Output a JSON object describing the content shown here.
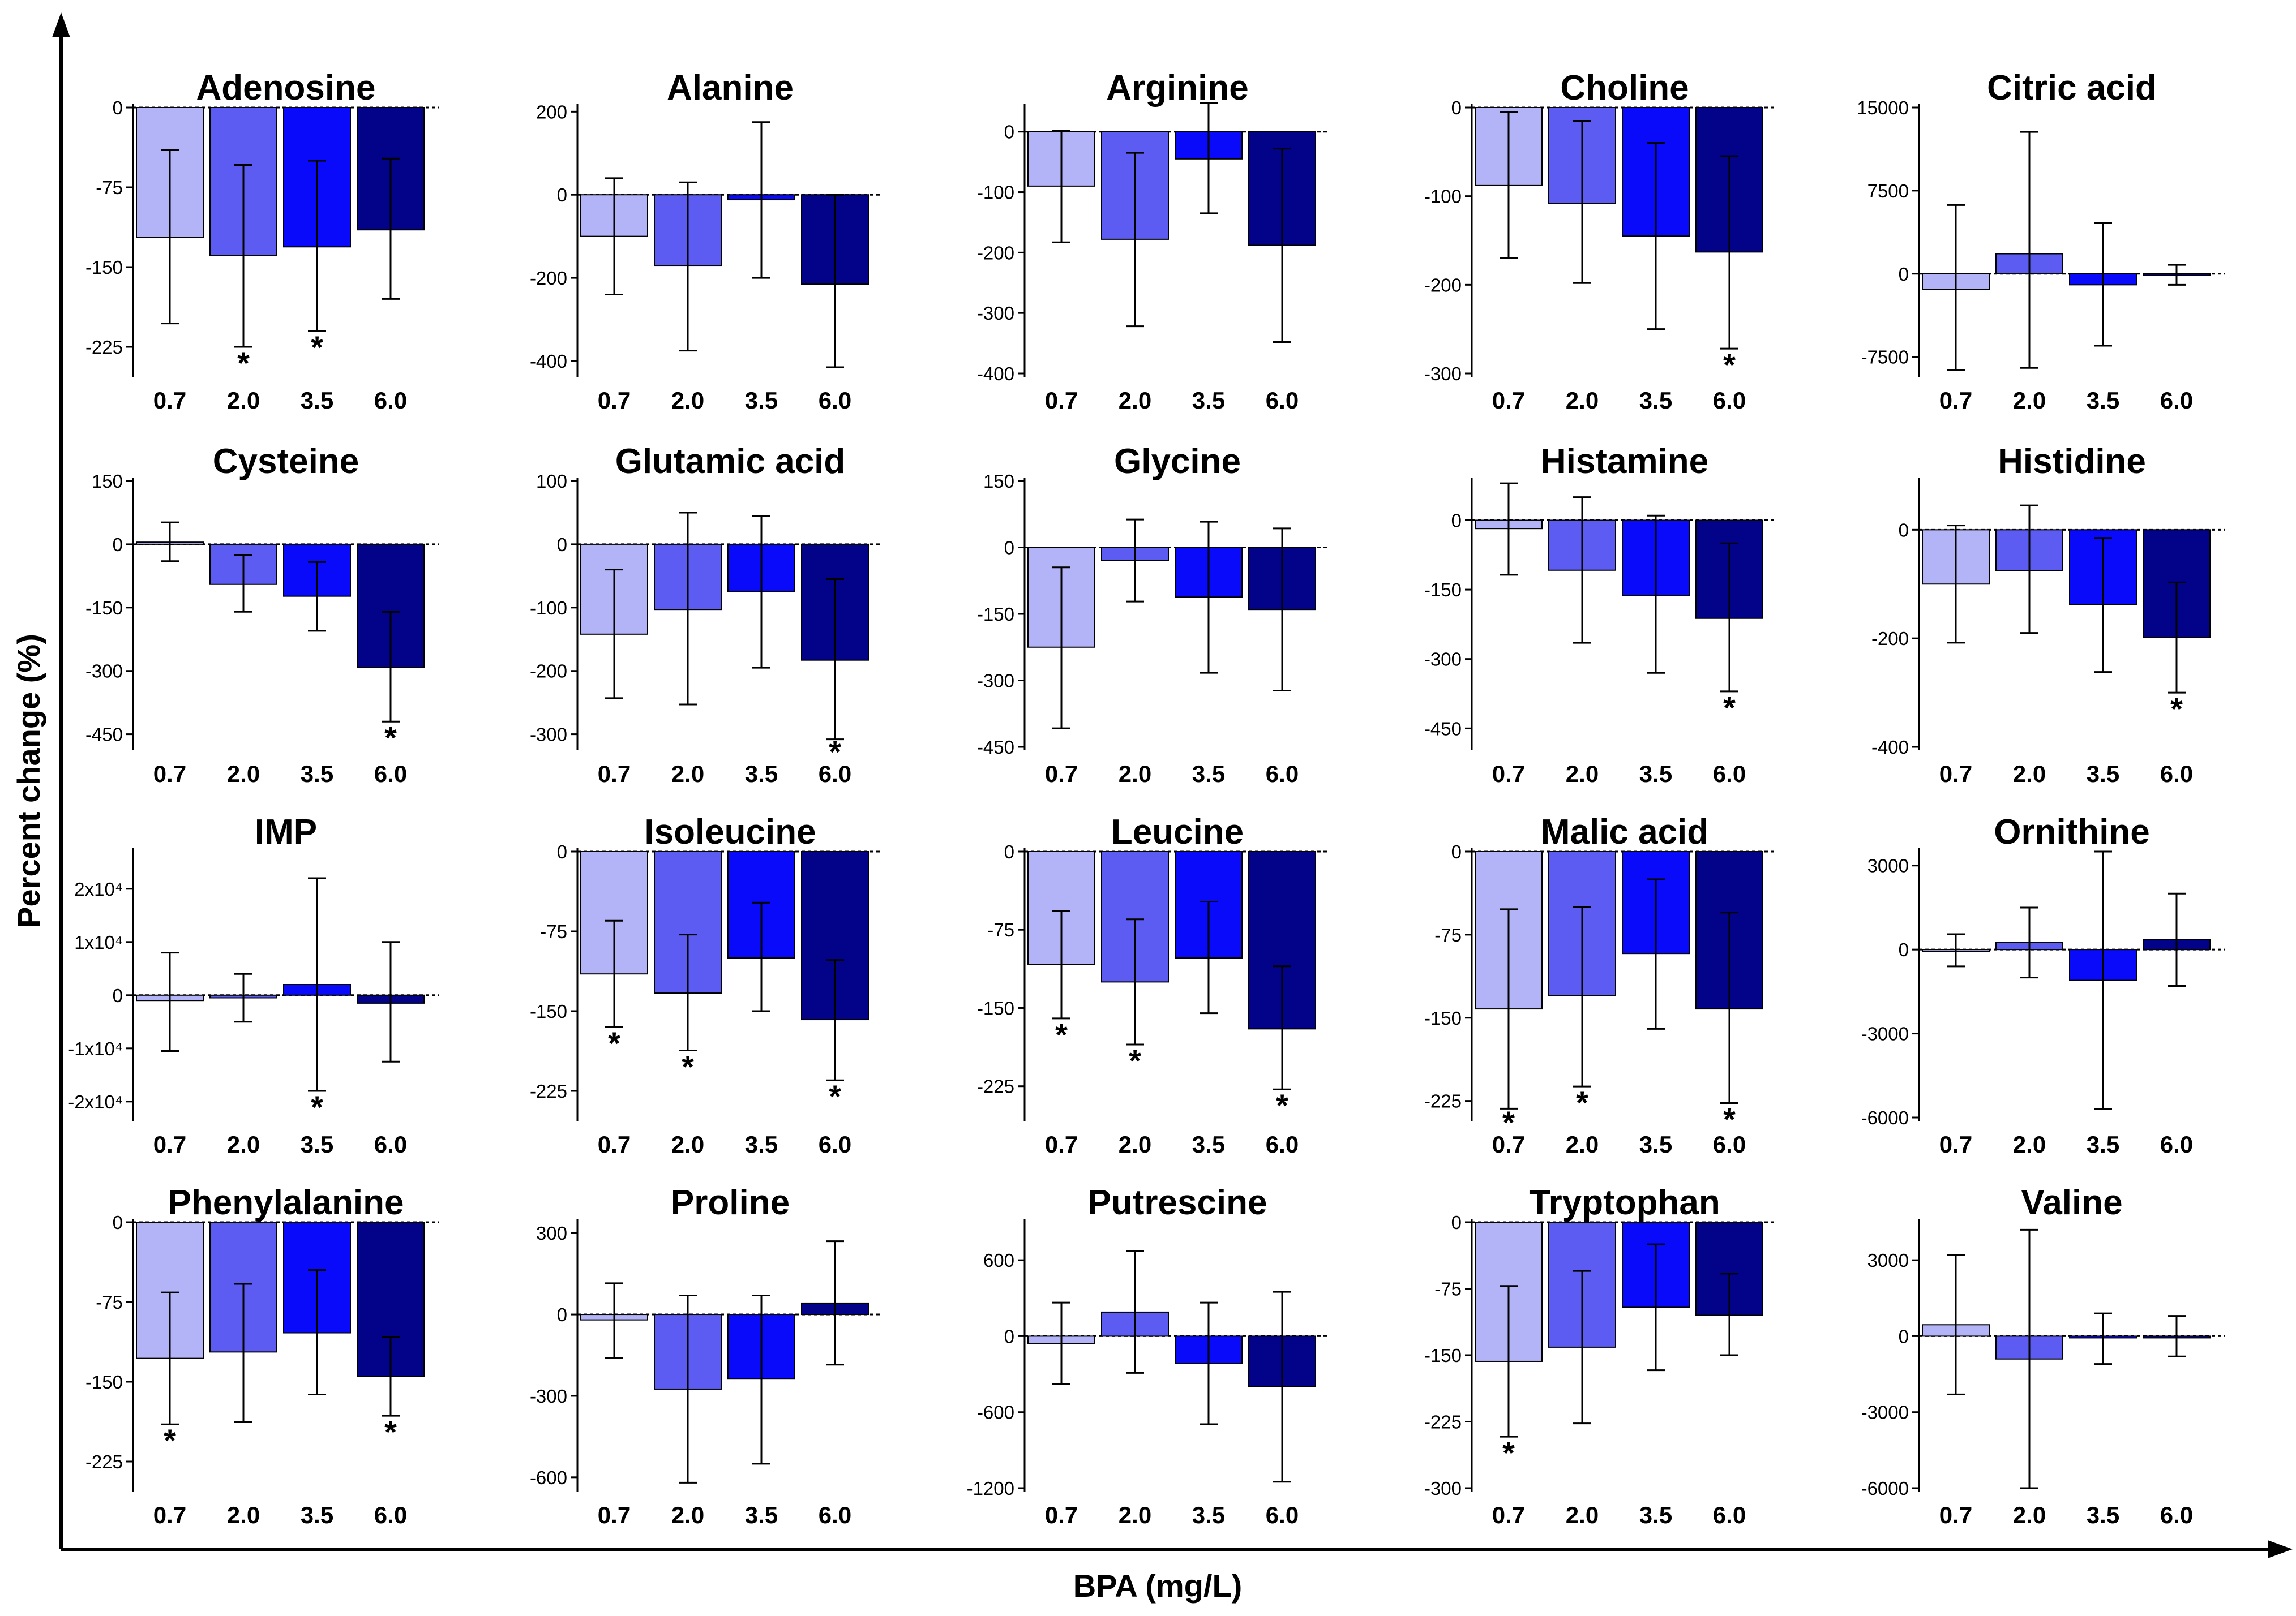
{
  "colors": {
    "0.7": "#b3b3f7",
    "2.0": "#5c5cf2",
    "3.5": "#0a0afa",
    "6.0": "#03038a"
  },
  "labels": {
    "xlabel": "BPA (mg/L)",
    "ylabel": "Percent change (%)"
  },
  "chart_data": [
    {
      "type": "bar",
      "title": "Adenosine",
      "categories": [
        "0.7",
        "2.0",
        "3.5",
        "6.0"
      ],
      "values": [
        -122,
        -139,
        -131,
        -115
      ],
      "err_low": [
        -203,
        -225,
        -210,
        -180
      ],
      "err_high": [
        -40,
        -54,
        -50,
        -48
      ],
      "sig": [
        false,
        true,
        true,
        false
      ],
      "ylim": [
        -250,
        0
      ],
      "ticks": [
        0,
        -75,
        -150,
        -225
      ],
      "tick_labels": [
        "0",
        "-75",
        "-150",
        "-225"
      ]
    },
    {
      "type": "bar",
      "title": "Alanine",
      "categories": [
        "0.7",
        "2.0",
        "3.5",
        "6.0"
      ],
      "values": [
        -100,
        -170,
        -12,
        -215
      ],
      "err_low": [
        -240,
        -375,
        -200,
        -415
      ],
      "err_high": [
        40,
        30,
        175,
        0
      ],
      "sig": [
        false,
        false,
        false,
        false
      ],
      "ylim": [
        -430,
        210
      ],
      "ticks": [
        200,
        0,
        -200,
        -400
      ],
      "tick_labels": [
        "200",
        "0",
        "-200",
        "-400"
      ]
    },
    {
      "type": "bar",
      "title": "Arginine",
      "categories": [
        "0.7",
        "2.0",
        "3.5",
        "6.0"
      ],
      "values": [
        -90,
        -178,
        -45,
        -188
      ],
      "err_low": [
        -183,
        -322,
        -135,
        -348
      ],
      "err_high": [
        2,
        -35,
        47,
        -28
      ],
      "sig": [
        false,
        false,
        false,
        false
      ],
      "ylim": [
        -400,
        40
      ],
      "ticks": [
        0,
        -100,
        -200,
        -300,
        -400
      ],
      "tick_labels": [
        "0",
        "-100",
        "-200",
        "-300",
        "-400"
      ]
    },
    {
      "type": "bar",
      "title": "Choline",
      "categories": [
        "0.7",
        "2.0",
        "3.5",
        "6.0"
      ],
      "values": [
        -88,
        -108,
        -145,
        -163
      ],
      "err_low": [
        -170,
        -198,
        -250,
        -272
      ],
      "err_high": [
        -5,
        -15,
        -40,
        -55
      ],
      "sig": [
        false,
        false,
        false,
        true
      ],
      "ylim": [
        -300,
        0
      ],
      "ticks": [
        0,
        -100,
        -200,
        -300
      ],
      "tick_labels": [
        "0",
        "-100",
        "-200",
        "-300"
      ]
    },
    {
      "type": "bar",
      "title": "Citric acid",
      "categories": [
        "0.7",
        "2.0",
        "3.5",
        "6.0"
      ],
      "values": [
        -1400,
        1800,
        -1000,
        -100
      ],
      "err_low": [
        -8700,
        -8500,
        -6500,
        -1000
      ],
      "err_high": [
        6200,
        12800,
        4600,
        800
      ],
      "sig": [
        false,
        false,
        false,
        false
      ],
      "ylim": [
        -9000,
        15000
      ],
      "ticks": [
        15000,
        7500,
        0,
        -7500
      ],
      "tick_labels": [
        "15000",
        "7500",
        "0",
        "-7500"
      ]
    },
    {
      "type": "bar",
      "title": "Cysteine",
      "categories": [
        "0.7",
        "2.0",
        "3.5",
        "6.0"
      ],
      "values": [
        5,
        -95,
        -123,
        -292
      ],
      "err_low": [
        -40,
        -160,
        -205,
        -420
      ],
      "err_high": [
        52,
        -25,
        -42,
        -160
      ],
      "sig": [
        false,
        false,
        false,
        true
      ],
      "ylim": [
        -480,
        150
      ],
      "ticks": [
        150,
        0,
        -150,
        -300,
        -450
      ],
      "tick_labels": [
        "150",
        "0",
        "-150",
        "-300",
        "-450"
      ]
    },
    {
      "type": "bar",
      "title": "Glutamic acid",
      "categories": [
        "0.7",
        "2.0",
        "3.5",
        "6.0"
      ],
      "values": [
        -142,
        -103,
        -75,
        -183
      ],
      "err_low": [
        -243,
        -253,
        -195,
        -308
      ],
      "err_high": [
        -40,
        50,
        45,
        -55
      ],
      "sig": [
        false,
        false,
        false,
        true
      ],
      "ylim": [
        -320,
        100
      ],
      "ticks": [
        100,
        0,
        -100,
        -200,
        -300
      ],
      "tick_labels": [
        "100",
        "0",
        "-100",
        "-200",
        "-300"
      ]
    },
    {
      "type": "bar",
      "title": "Glycine",
      "categories": [
        "0.7",
        "2.0",
        "3.5",
        "6.0"
      ],
      "values": [
        -225,
        -30,
        -112,
        -140
      ],
      "err_low": [
        -408,
        -122,
        -283,
        -323
      ],
      "err_high": [
        -45,
        63,
        58,
        43
      ],
      "sig": [
        false,
        false,
        false,
        false
      ],
      "ylim": [
        -450,
        150
      ],
      "ticks": [
        150,
        0,
        -150,
        -300,
        -450
      ],
      "tick_labels": [
        "150",
        "0",
        "-150",
        "-300",
        "-450"
      ]
    },
    {
      "type": "bar",
      "title": "Histamine",
      "categories": [
        "0.7",
        "2.0",
        "3.5",
        "6.0"
      ],
      "values": [
        -18,
        -108,
        -163,
        -212
      ],
      "err_low": [
        -118,
        -265,
        -330,
        -370
      ],
      "err_high": [
        80,
        50,
        10,
        -50
      ],
      "sig": [
        false,
        false,
        false,
        true
      ],
      "ylim": [
        -490,
        85
      ],
      "ticks": [
        0,
        -150,
        -300,
        -450
      ],
      "tick_labels": [
        "0",
        "-150",
        "-300",
        "-450"
      ]
    },
    {
      "type": "bar",
      "title": "Histidine",
      "categories": [
        "0.7",
        "2.0",
        "3.5",
        "6.0"
      ],
      "values": [
        -100,
        -75,
        -138,
        -198
      ],
      "err_low": [
        -208,
        -190,
        -262,
        -300
      ],
      "err_high": [
        8,
        45,
        -15,
        -97
      ],
      "sig": [
        false,
        false,
        false,
        true
      ],
      "ylim": [
        -400,
        90
      ],
      "ticks": [
        0,
        -200,
        -400
      ],
      "tick_labels": [
        "0",
        "-200",
        "-400"
      ]
    },
    {
      "type": "bar",
      "title": "IMP",
      "categories": [
        "0.7",
        "2.0",
        "3.5",
        "6.0"
      ],
      "values": [
        -1000,
        -500,
        2000,
        -1500
      ],
      "err_low": [
        -10500,
        -5000,
        -18000,
        -12500
      ],
      "err_high": [
        8000,
        4000,
        22000,
        10000
      ],
      "sig": [
        false,
        false,
        true,
        false
      ],
      "ylim": [
        -23000,
        27000
      ],
      "ticks": [
        20000,
        10000,
        0,
        -10000,
        -20000
      ],
      "tick_labels": [
        "2x10⁴",
        "1x10⁴",
        "0",
        "-1x10⁴",
        "-2x10⁴"
      ]
    },
    {
      "type": "bar",
      "title": "Isoleucine",
      "categories": [
        "0.7",
        "2.0",
        "3.5",
        "6.0"
      ],
      "values": [
        -115,
        -133,
        -100,
        -158
      ],
      "err_low": [
        -165,
        -187,
        -150,
        -215
      ],
      "err_high": [
        -65,
        -78,
        -48,
        -102
      ],
      "sig": [
        true,
        true,
        false,
        true
      ],
      "ylim": [
        -250,
        0
      ],
      "ticks": [
        0,
        -75,
        -150,
        -225
      ],
      "tick_labels": [
        "0",
        "-75",
        "-150",
        "-225"
      ]
    },
    {
      "type": "bar",
      "title": "Leucine",
      "categories": [
        "0.7",
        "2.0",
        "3.5",
        "6.0"
      ],
      "values": [
        -108,
        -125,
        -102,
        -170
      ],
      "err_low": [
        -160,
        -185,
        -155,
        -228
      ],
      "err_high": [
        -57,
        -65,
        -48,
        -110
      ],
      "sig": [
        true,
        true,
        false,
        true
      ],
      "ylim": [
        -255,
        0
      ],
      "ticks": [
        0,
        -75,
        -150,
        -225
      ],
      "tick_labels": [
        "0",
        "-75",
        "-150",
        "-225"
      ]
    },
    {
      "type": "bar",
      "title": "Malic acid",
      "categories": [
        "0.7",
        "2.0",
        "3.5",
        "6.0"
      ],
      "values": [
        -142,
        -130,
        -92,
        -142
      ],
      "err_low": [
        -232,
        -212,
        -160,
        -227
      ],
      "err_high": [
        -52,
        -50,
        -25,
        -55
      ],
      "sig": [
        true,
        true,
        false,
        true
      ],
      "ylim": [
        -240,
        0
      ],
      "ticks": [
        0,
        -75,
        -150,
        -225
      ],
      "tick_labels": [
        "0",
        "-75",
        "-150",
        "-225"
      ]
    },
    {
      "type": "bar",
      "title": "Ornithine",
      "categories": [
        "0.7",
        "2.0",
        "3.5",
        "6.0"
      ],
      "values": [
        -50,
        250,
        -1100,
        350
      ],
      "err_low": [
        -600,
        -1000,
        -5700,
        -1300
      ],
      "err_high": [
        550,
        1500,
        3500,
        2000
      ],
      "sig": [
        false,
        false,
        false,
        false
      ],
      "ylim": [
        -6000,
        3500
      ],
      "ticks": [
        3000,
        0,
        -3000,
        -6000
      ],
      "tick_labels": [
        "3000",
        "0",
        "-3000",
        "-6000"
      ]
    },
    {
      "type": "bar",
      "title": "Phenylalanine",
      "categories": [
        "0.7",
        "2.0",
        "3.5",
        "6.0"
      ],
      "values": [
        -128,
        -122,
        -104,
        -145
      ],
      "err_low": [
        -190,
        -188,
        -162,
        -182
      ],
      "err_high": [
        -66,
        -58,
        -45,
        -108
      ],
      "sig": [
        true,
        false,
        false,
        true
      ],
      "ylim": [
        -250,
        0
      ],
      "ticks": [
        0,
        -75,
        -150,
        -225
      ],
      "tick_labels": [
        "0",
        "-75",
        "-150",
        "-225"
      ]
    },
    {
      "type": "bar",
      "title": "Proline",
      "categories": [
        "0.7",
        "2.0",
        "3.5",
        "6.0"
      ],
      "values": [
        -20,
        -275,
        -238,
        42
      ],
      "err_low": [
        -160,
        -620,
        -550,
        -185
      ],
      "err_high": [
        115,
        70,
        70,
        270
      ],
      "sig": [
        false,
        false,
        false,
        false
      ],
      "ylim": [
        -640,
        340
      ],
      "ticks": [
        300,
        0,
        -300,
        -600
      ],
      "tick_labels": [
        "300",
        "0",
        "-300",
        "-600"
      ]
    },
    {
      "type": "bar",
      "title": "Putrescine",
      "categories": [
        "0.7",
        "2.0",
        "3.5",
        "6.0"
      ],
      "values": [
        -60,
        190,
        -215,
        -400
      ],
      "err_low": [
        -380,
        -290,
        -695,
        -1150
      ],
      "err_high": [
        265,
        670,
        265,
        350
      ],
      "sig": [
        false,
        false,
        false,
        false
      ],
      "ylim": [
        -1200,
        900
      ],
      "ticks": [
        600,
        0,
        -600,
        -1200
      ],
      "tick_labels": [
        "600",
        "0",
        "-600",
        "-1200"
      ]
    },
    {
      "type": "bar",
      "title": "Tryptophan",
      "categories": [
        "0.7",
        "2.0",
        "3.5",
        "6.0"
      ],
      "values": [
        -157,
        -141,
        -96,
        -105
      ],
      "err_low": [
        -242,
        -227,
        -167,
        -150
      ],
      "err_high": [
        -72,
        -55,
        -25,
        -58
      ],
      "sig": [
        true,
        false,
        false,
        false
      ],
      "ylim": [
        -300,
        0
      ],
      "ticks": [
        0,
        -75,
        -150,
        -225,
        -300
      ],
      "tick_labels": [
        "0",
        "-75",
        "-150",
        "-225",
        "-300"
      ]
    },
    {
      "type": "bar",
      "title": "Valine",
      "categories": [
        "0.7",
        "2.0",
        "3.5",
        "6.0"
      ],
      "values": [
        450,
        -900,
        -50,
        0
      ],
      "err_low": [
        -2300,
        -6000,
        -1100,
        -800
      ],
      "err_high": [
        3200,
        4200,
        900,
        800
      ],
      "sig": [
        false,
        false,
        false,
        false
      ],
      "ylim": [
        -6000,
        4500
      ],
      "ticks": [
        3000,
        0,
        -3000,
        -6000
      ],
      "tick_labels": [
        "3000",
        "0",
        "-3000",
        "-6000"
      ]
    }
  ]
}
